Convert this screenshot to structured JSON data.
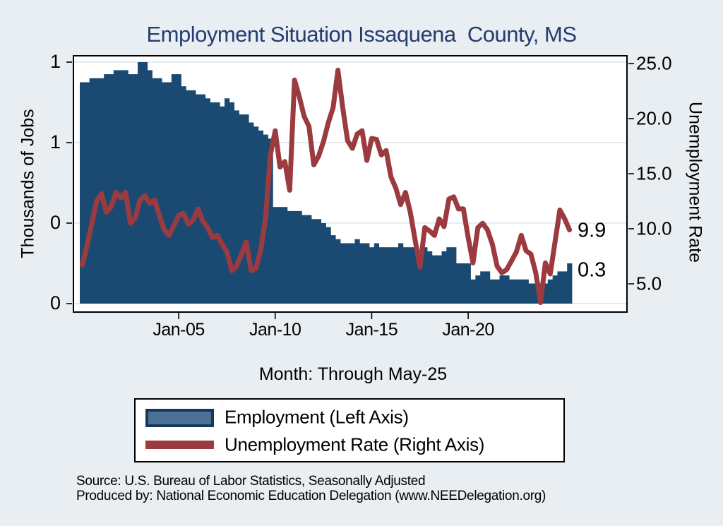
{
  "title": "Employment Situation Issaquena  County, MS",
  "colors": {
    "background": "#e9eef3",
    "plot_background": "#ffffff",
    "title": "#253d6e",
    "grid": "#dae5f0",
    "bar": "#1a4a72",
    "line": "#9b3b40"
  },
  "chart_data": {
    "type": "combo",
    "title": "Employment Situation Issaquena  County, MS",
    "x": {
      "axis_title": "Month: Through May-25",
      "period_start": "2000Q1",
      "period_end": "2025Q2 (May-25)",
      "frequency": "quarterly (digitized from monthly series)",
      "tick_labels": [
        "Jan-05",
        "Jan-10",
        "Jan-15",
        "Jan-20"
      ],
      "tick_months": [
        60,
        120,
        180,
        240
      ],
      "span_months": 304
    },
    "left_axis": {
      "title": "Thousands of Jobs",
      "tick_labels": [
        "1",
        "1",
        "0",
        "0"
      ],
      "tick_values": [
        0.8,
        0.6,
        0.4,
        0.2
      ],
      "range": [
        0.2,
        0.82
      ],
      "grid": true
    },
    "right_axis": {
      "title": "Unemployment Rate",
      "tick_labels": [
        "25.0",
        "20.0",
        "15.0",
        "10.0",
        "5.0"
      ],
      "tick_values": [
        25,
        20,
        15,
        10,
        5
      ],
      "range": [
        3,
        25.5
      ],
      "grid": false
    },
    "series": [
      {
        "name": "Employment (Left Axis)",
        "type": "bar",
        "axis": "left",
        "color": "#1a4a72",
        "values": [
          0.75,
          0.75,
          0.76,
          0.76,
          0.76,
          0.77,
          0.77,
          0.78,
          0.78,
          0.78,
          0.77,
          0.77,
          0.8,
          0.8,
          0.78,
          0.76,
          0.76,
          0.75,
          0.75,
          0.77,
          0.77,
          0.74,
          0.73,
          0.73,
          0.72,
          0.72,
          0.71,
          0.7,
          0.7,
          0.69,
          0.71,
          0.7,
          0.68,
          0.67,
          0.67,
          0.65,
          0.64,
          0.63,
          0.62,
          0.61,
          0.44,
          0.44,
          0.44,
          0.43,
          0.43,
          0.43,
          0.42,
          0.42,
          0.41,
          0.41,
          0.4,
          0.39,
          0.37,
          0.36,
          0.35,
          0.35,
          0.35,
          0.36,
          0.35,
          0.35,
          0.34,
          0.35,
          0.34,
          0.34,
          0.34,
          0.34,
          0.35,
          0.34,
          0.34,
          0.34,
          0.33,
          0.34,
          0.33,
          0.32,
          0.32,
          0.33,
          0.34,
          0.34,
          0.3,
          0.3,
          0.3,
          0.26,
          0.27,
          0.28,
          0.28,
          0.26,
          0.26,
          0.27,
          0.27,
          0.26,
          0.26,
          0.26,
          0.26,
          0.25,
          0.25,
          0.25,
          0.25,
          0.26,
          0.27,
          0.28,
          0.28,
          0.3
        ]
      },
      {
        "name": "Unemployment Rate (Right Axis)",
        "type": "line",
        "axis": "right",
        "color": "#9b3b40",
        "values": [
          6.7,
          8.5,
          10.5,
          12.5,
          13.2,
          11.5,
          12,
          13.3,
          12.8,
          13.3,
          10.5,
          11,
          12.6,
          13,
          12.3,
          12.6,
          11.2,
          9.9,
          9.4,
          10.3,
          11.2,
          11.4,
          10.4,
          10.8,
          11.8,
          10.7,
          10.1,
          9.2,
          9.4,
          8.6,
          7.9,
          6.2,
          6.6,
          7.7,
          8.8,
          6.2,
          6.4,
          8.1,
          10.9,
          16.7,
          18.9,
          15.6,
          16.1,
          13.5,
          23.5,
          22,
          20.2,
          19.3,
          15.8,
          16.6,
          17.9,
          19.6,
          21,
          24.4,
          21,
          18,
          17.3,
          18.6,
          18.9,
          16.2,
          18.2,
          18.1,
          16.7,
          17.1,
          14.7,
          13.7,
          12.2,
          13.3,
          11.5,
          9,
          6.5,
          10.1,
          9.8,
          9.4,
          10.9,
          10.2,
          12.7,
          12.9,
          11.8,
          11.8,
          9.2,
          6.9,
          10.1,
          10.5,
          9.9,
          8.6,
          6.6,
          6,
          6.3,
          7.1,
          7.9,
          9.4,
          8,
          7.7,
          6,
          3.3,
          6.9,
          5.9,
          8.8,
          11.7,
          10.9,
          9.9
        ]
      }
    ],
    "end_labels": {
      "unemployment": "9.9",
      "employment": "0.3"
    }
  },
  "legend": {
    "items": [
      {
        "label": "Employment (Left Axis)",
        "swatch": "bar",
        "fill": "#4a7094",
        "border": "#16375a"
      },
      {
        "label": "Unemployment Rate (Right Axis)",
        "swatch": "line",
        "color": "#9b3b40"
      }
    ]
  },
  "footer": {
    "line1": "Source: U.S. Bureau of Labor Statistics, Seasonally Adjusted",
    "line2": "Produced by: National Economic Education Delegation (www.NEEDelegation.org)"
  }
}
